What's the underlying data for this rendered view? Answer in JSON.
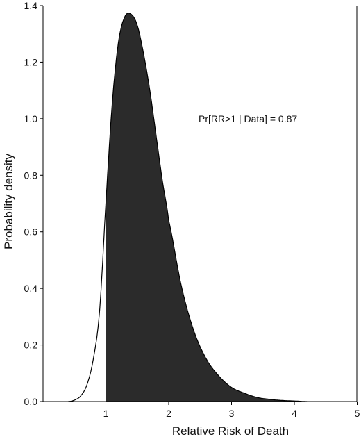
{
  "chart_data": {
    "type": "area",
    "title": "",
    "xlabel": "Relative Risk of Death",
    "ylabel": "Probability density",
    "xlim": [
      0,
      5
    ],
    "ylim": [
      0,
      1.4
    ],
    "xticks": [
      "1",
      "2",
      "3",
      "4",
      "5"
    ],
    "yticks": [
      "0.0",
      "0.2",
      "0.4",
      "0.6",
      "0.8",
      "1.0",
      "1.2",
      "1.4"
    ],
    "annotation": "Pr[RR>1 | Data] = 0.87",
    "shaded_region": {
      "x_from": 1,
      "x_to": 5,
      "probability": 0.87
    },
    "curve": {
      "x": [
        0.4,
        0.5,
        0.6,
        0.7,
        0.8,
        0.9,
        1.0,
        1.1,
        1.2,
        1.3,
        1.4,
        1.5,
        1.6,
        1.7,
        1.8,
        1.9,
        2.0,
        2.2,
        2.4,
        2.6,
        2.8,
        3.0,
        3.2,
        3.4,
        3.6,
        3.8,
        4.0,
        4.2
      ],
      "y": [
        0.0,
        0.005,
        0.02,
        0.06,
        0.15,
        0.32,
        0.7,
        1.05,
        1.27,
        1.36,
        1.37,
        1.33,
        1.23,
        1.1,
        0.94,
        0.78,
        0.64,
        0.41,
        0.25,
        0.15,
        0.09,
        0.05,
        0.03,
        0.015,
        0.008,
        0.004,
        0.002,
        0.0
      ]
    }
  },
  "colors": {
    "fill": "#2b2b2b",
    "line": "#000000",
    "axis": "#000000"
  }
}
